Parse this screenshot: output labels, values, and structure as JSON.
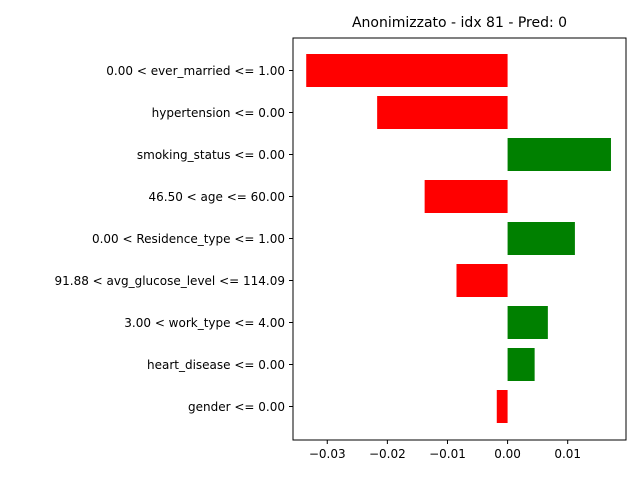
{
  "chart_data": {
    "type": "bar",
    "orientation": "horizontal",
    "title": "Anonimizzato - idx 81 - Pred: 0",
    "xlabel": "",
    "ylabel": "",
    "categories": [
      "0.00 < ever_married <= 1.00",
      "hypertension <= 0.00",
      "smoking_status <= 0.00",
      "46.50 < age <= 60.00",
      "0.00 < Residence_type <= 1.00",
      "91.88 < avg_glucose_level <= 114.09",
      "3.00 < work_type <= 4.00",
      "heart_disease <= 0.00",
      "gender <= 0.00"
    ],
    "values": [
      -0.0335,
      -0.0217,
      0.0172,
      -0.0138,
      0.0112,
      -0.0085,
      0.0067,
      0.0045,
      -0.0018
    ],
    "xlim": [
      -0.0357,
      0.0197
    ],
    "xticks": [
      -0.03,
      -0.02,
      -0.01,
      0.0,
      0.01
    ],
    "xtick_labels": [
      "−0.03",
      "−0.02",
      "−0.01",
      "0.00",
      "0.01"
    ],
    "grid": false,
    "colors": {
      "positive": "#008000",
      "negative": "#ff0000"
    }
  }
}
